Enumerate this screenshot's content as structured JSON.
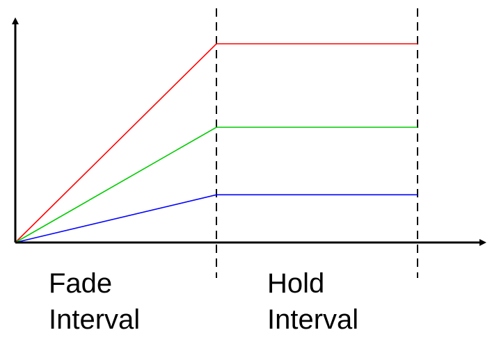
{
  "chart_data": {
    "type": "line",
    "x": [
      0,
      1,
      2
    ],
    "series": [
      {
        "values": [
          0,
          1.0,
          1.0
        ],
        "color": "#ff0000"
      },
      {
        "values": [
          0,
          0.58,
          0.58
        ],
        "color": "#00cc00"
      },
      {
        "values": [
          0,
          0.24,
          0.24
        ],
        "color": "#0000ff"
      }
    ],
    "xlim": [
      0,
      2.33
    ],
    "ylim": [
      0,
      1.22
    ],
    "boundaries": [
      1,
      2
    ],
    "boundary_style": "dashed",
    "interval_labels": [
      {
        "lines": [
          "Fade",
          "Interval"
        ]
      },
      {
        "lines": [
          "Hold",
          "Interval"
        ]
      }
    ],
    "title": "",
    "xlabel": "",
    "ylabel": "",
    "grid": false,
    "axis_color": "#000000"
  }
}
